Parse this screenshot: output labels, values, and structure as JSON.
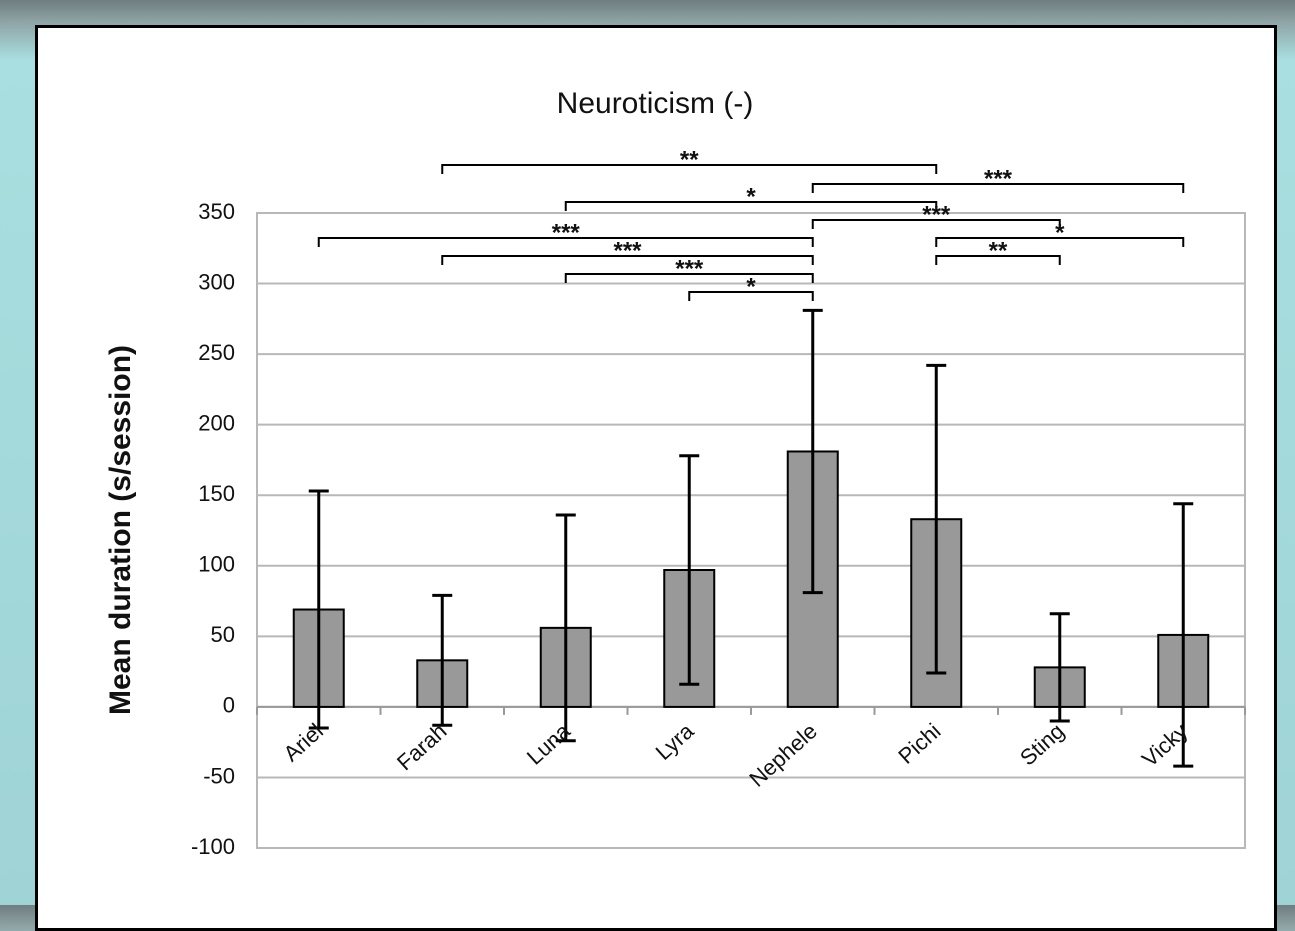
{
  "chart_data": {
    "type": "bar",
    "title": "Neuroticism (-)",
    "y_label": "Mean duration (s/session)",
    "categories": [
      "Ariel",
      "Farah",
      "Luna",
      "Lyra",
      "Nephele",
      "Pichi",
      "Sting",
      "Vicky"
    ],
    "values": [
      69,
      33,
      56,
      97,
      181,
      133,
      28,
      51
    ],
    "errors": [
      84,
      46,
      80,
      81,
      100,
      109,
      38,
      93
    ],
    "color": "#999999",
    "ylim": [
      -100,
      350
    ],
    "yticks": [
      -100,
      -50,
      0,
      50,
      100,
      150,
      200,
      250,
      300,
      350
    ],
    "grid": true,
    "comparisons": [
      {
        "pair": [
          "Farah",
          "Pichi"
        ],
        "label": "**"
      },
      {
        "pair": [
          "Nephele",
          "Vicky"
        ],
        "label": "***"
      },
      {
        "pair": [
          "Luna",
          "Pichi"
        ],
        "label": "*"
      },
      {
        "pair": [
          "Nephele",
          "Sting"
        ],
        "label": "***"
      },
      {
        "pair": [
          "Ariel",
          "Nephele"
        ],
        "label": "***"
      },
      {
        "pair": [
          "Pichi",
          "Vicky"
        ],
        "label": "*"
      },
      {
        "pair": [
          "Farah",
          "Nephele"
        ],
        "label": "***"
      },
      {
        "pair": [
          "Pichi",
          "Sting"
        ],
        "label": "**"
      },
      {
        "pair": [
          "Luna",
          "Nephele"
        ],
        "label": "***"
      },
      {
        "pair": [
          "Lyra",
          "Nephele"
        ],
        "label": "*"
      }
    ]
  }
}
